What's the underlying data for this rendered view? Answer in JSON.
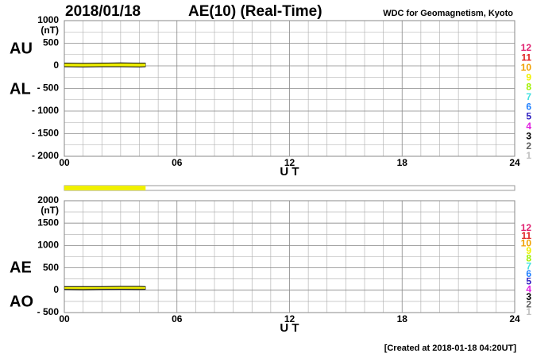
{
  "header": {
    "date": "2018/01/18",
    "title": "AE(10) (Real-Time)",
    "source": "WDC for Geomagnetism, Kyoto"
  },
  "footer": "[Created at 2018-01-18 04:20UT]",
  "chart_data": [
    {
      "type": "line",
      "unit": "(nT)",
      "xlabel": "U T",
      "xlim": [
        0,
        24
      ],
      "ylim": [
        -2000,
        1000
      ],
      "xticks": [
        {
          "value": 0,
          "label": "00"
        },
        {
          "value": 6,
          "label": "06"
        },
        12,
        18,
        24
      ],
      "yticks": [
        1000,
        500,
        0,
        {
          "value": -500,
          "label": "- 500"
        },
        {
          "value": -1000,
          "label": "- 1000"
        },
        {
          "value": -1500,
          "label": "- 1500"
        },
        {
          "value": -2000,
          "label": "- 2000"
        }
      ],
      "grid": true,
      "fill": "#f0f000",
      "x": [
        0,
        1,
        2,
        3,
        4,
        4.33
      ],
      "series": [
        {
          "name": "AU",
          "color": "#000000",
          "values": [
            60,
            55,
            60,
            65,
            60,
            60
          ]
        },
        {
          "name": "AL",
          "color": "#000000",
          "values": [
            -20,
            -25,
            -20,
            -20,
            -25,
            -20
          ]
        }
      ],
      "station_counts": [
        {
          "label": "12",
          "color": "#e0206f"
        },
        {
          "label": "11",
          "color": "#e02020"
        },
        {
          "label": "10",
          "color": "#f0a000"
        },
        {
          "label": "9",
          "color": "#f0f000"
        },
        {
          "label": "8",
          "color": "#a0f000"
        },
        {
          "label": "7",
          "color": "#40e0e0"
        },
        {
          "label": "6",
          "color": "#2080ff"
        },
        {
          "label": "5",
          "color": "#3020c0"
        },
        {
          "label": "4",
          "color": "#e020e0"
        },
        {
          "label": "3",
          "color": "#000000"
        },
        {
          "label": "2",
          "color": "#606060"
        },
        {
          "label": "1",
          "color": "#c0c0c0"
        }
      ]
    },
    {
      "type": "coverage",
      "xlim": [
        0,
        24
      ],
      "values": [
        4.33
      ],
      "color": "#f0f000"
    },
    {
      "type": "line",
      "unit": "(nT)",
      "xlabel": "U T",
      "xlim": [
        0,
        24
      ],
      "ylim": [
        -500,
        2000
      ],
      "xticks": [
        {
          "value": 0,
          "label": "00"
        },
        {
          "value": 6,
          "label": "06"
        },
        12,
        18,
        24
      ],
      "yticks": [
        2000,
        1500,
        1000,
        500,
        0,
        {
          "value": -500,
          "label": "- 500"
        }
      ],
      "grid": true,
      "fill": "#f0f000",
      "x": [
        0,
        1,
        2,
        3,
        4,
        4.33
      ],
      "series": [
        {
          "name": "AE",
          "color": "#000000",
          "values": [
            80,
            80,
            80,
            85,
            85,
            80
          ]
        },
        {
          "name": "AO",
          "color": "#000000",
          "values": [
            20,
            15,
            20,
            22,
            18,
            20
          ]
        }
      ],
      "station_counts": [
        {
          "label": "12",
          "color": "#e0206f"
        },
        {
          "label": "11",
          "color": "#e02020"
        },
        {
          "label": "10",
          "color": "#f0a000"
        },
        {
          "label": "9",
          "color": "#f0f000"
        },
        {
          "label": "8",
          "color": "#a0f000"
        },
        {
          "label": "7",
          "color": "#40e0e0"
        },
        {
          "label": "6",
          "color": "#2080ff"
        },
        {
          "label": "5",
          "color": "#3020c0"
        },
        {
          "label": "4",
          "color": "#e020e0"
        },
        {
          "label": "3",
          "color": "#000000"
        },
        {
          "label": "2",
          "color": "#606060"
        },
        {
          "label": "1",
          "color": "#c0c0c0"
        }
      ]
    }
  ]
}
